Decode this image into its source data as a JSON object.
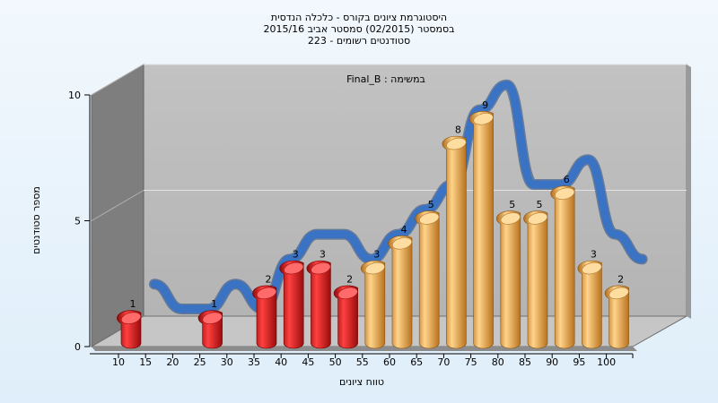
{
  "chart_data": {
    "type": "bar",
    "title_lines": [
      "היסטוגרמת ציונים בקורס - כלכלה הנדסית",
      "בסמסטר  (02/2015)  סמסטר אביב 2015/16",
      "סטודנטים רשומים - 223"
    ],
    "subtitle": "במשימה : Final_B",
    "xlabel": "טווח ציונים",
    "ylabel": "מספר סטודנטים",
    "ylim": [
      0,
      10
    ],
    "y_ticks": [
      "0",
      "5",
      "10"
    ],
    "x_ticks": [
      "10",
      "15",
      "20",
      "25",
      "30",
      "35",
      "40",
      "45",
      "50",
      "55",
      "60",
      "65",
      "70",
      "75",
      "80",
      "85",
      "90",
      "95",
      "100"
    ],
    "categories": [
      "10",
      "15",
      "20",
      "25",
      "30",
      "35",
      "40",
      "45",
      "50",
      "55",
      "60",
      "65",
      "70",
      "75",
      "80",
      "85",
      "90",
      "95",
      "100"
    ],
    "values": [
      1,
      0,
      0,
      1,
      0,
      2,
      3,
      3,
      2,
      3,
      4,
      5,
      8,
      9,
      5,
      5,
      6,
      3,
      2
    ],
    "value_labels": [
      "1",
      "",
      "",
      "1",
      "",
      "2",
      "3",
      "3",
      "2",
      "3",
      "4",
      "5",
      "8",
      "9",
      "5",
      "5",
      "6",
      "3",
      "2"
    ],
    "bar_colors": [
      "#e02020",
      "#e02020",
      "#e02020",
      "#e02020",
      "#e02020",
      "#e02020",
      "#e02020",
      "#e02020",
      "#e02020",
      "#e8a040",
      "#e8a040",
      "#e8a040",
      "#e8a040",
      "#e8a040",
      "#e8a040",
      "#e8a040",
      "#e8a040",
      "#e8a040",
      "#e8a040"
    ],
    "fail_color": "#e02020",
    "pass_color": "#e8a040",
    "curve_color": "#3a72c4",
    "grid": true
  }
}
